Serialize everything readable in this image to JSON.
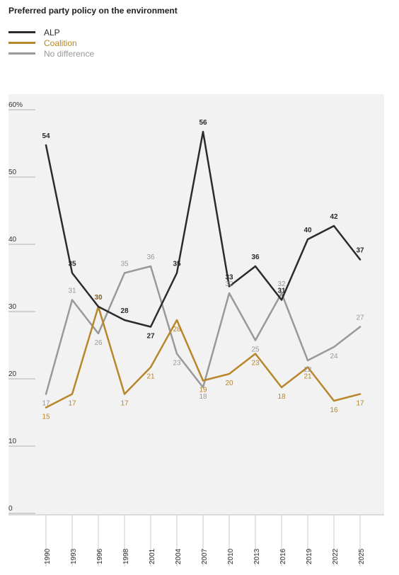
{
  "chart_data": {
    "type": "line",
    "title": "Preferred party policy on the environment",
    "x": [
      "1990",
      "1993",
      "1996",
      "1998",
      "2001",
      "2004",
      "2007",
      "2010",
      "2013",
      "2016",
      "2019",
      "2022",
      "2025"
    ],
    "y_ticks": [
      "0",
      "10",
      "20",
      "30",
      "40",
      "50",
      "60%"
    ],
    "ylim": [
      0,
      60
    ],
    "grid": false,
    "legend_position": "top-left",
    "series": [
      {
        "name": "ALP",
        "color": "#2b2b2b",
        "values": [
          54,
          35,
          30,
          28,
          27,
          35,
          56,
          33,
          36,
          31,
          40,
          42,
          37
        ],
        "label_offsets_note": ""
      },
      {
        "name": "Coalition",
        "color": "#b8862b",
        "values": [
          15,
          17,
          30,
          17,
          21,
          28,
          19,
          20,
          23,
          18,
          21,
          16,
          17
        ]
      },
      {
        "name": "No difference",
        "color": "#999999",
        "values": [
          17,
          31,
          26,
          35,
          36,
          23,
          18,
          32,
          25,
          32,
          22,
          24,
          27
        ]
      }
    ]
  }
}
